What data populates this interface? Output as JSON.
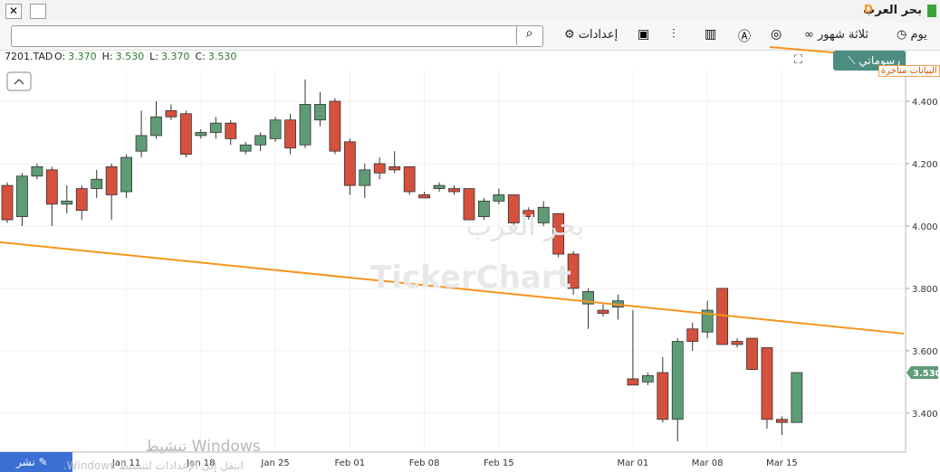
{
  "window": {
    "title": "بحر العرب",
    "badge": "D"
  },
  "toolbar": {
    "period": "يوم",
    "range": "ثلاثة شهور",
    "settings": "إعدادات"
  },
  "panel": {
    "drawings": "رسوماتي",
    "delayed": "البيانات متأخرة",
    "publish": "نشر"
  },
  "watermark": {
    "name": "بحر العرب",
    "brand": "TickerChart"
  },
  "system_overlay": {
    "line1": "تنشيط Windows",
    "line2": "انتقل إلى الإعدادات لتنشيط Windows."
  },
  "chart_data": {
    "type": "candlestick",
    "symbol": "7201.TAD",
    "info": [
      {
        "name": "O:",
        "value": {
          "value": 3.37,
          "label": "3.370"
        }
      },
      {
        "name": "H:",
        "value": {
          "value": 3.53,
          "label": "3.530"
        }
      },
      {
        "name": "L:",
        "value": {
          "value": 3.37,
          "label": "3.370"
        }
      },
      {
        "name": "C:",
        "value": {
          "value": 3.53,
          "label": "3.530"
        }
      }
    ],
    "last_price": {
      "value": 3.53,
      "label": "3.530"
    },
    "up_color": "#5e9c76",
    "down_color": "#d6503e",
    "x": [
      null,
      null,
      null,
      null,
      null,
      null,
      null,
      null,
      "Jan 11",
      null,
      null,
      null,
      null,
      "Jan 18",
      null,
      null,
      null,
      null,
      "Jan 25",
      null,
      null,
      null,
      null,
      "Feb 01",
      null,
      null,
      null,
      null,
      "Feb 08",
      null,
      null,
      null,
      null,
      "Feb 15",
      null,
      null,
      null,
      null,
      null,
      null,
      null,
      null,
      "Mar 01",
      null,
      null,
      null,
      null,
      "Mar 08",
      null,
      null,
      null,
      null,
      "Mar 15",
      null
    ],
    "open": [
      4.13,
      4.03,
      4.16,
      4.18,
      4.07,
      4.12,
      4.12,
      4.19,
      4.11,
      4.24,
      4.29,
      4.37,
      4.36,
      4.29,
      4.3,
      4.33,
      4.24,
      4.26,
      4.28,
      4.34,
      4.26,
      4.34,
      4.4,
      4.27,
      4.13,
      4.2,
      4.19,
      4.19,
      4.1,
      4.12,
      4.12,
      4.12,
      4.03,
      4.08,
      4.1,
      4.05,
      4.01,
      4.04,
      3.91,
      3.75,
      3.73,
      3.74,
      3.51,
      3.5,
      3.53,
      3.38,
      3.67,
      3.66,
      3.8,
      3.63,
      3.64,
      3.61,
      3.38,
      3.37
    ],
    "high": [
      4.14,
      4.17,
      4.2,
      4.19,
      4.13,
      4.13,
      4.18,
      4.2,
      4.23,
      4.37,
      4.4,
      4.39,
      4.37,
      4.31,
      4.35,
      4.34,
      4.27,
      4.3,
      4.35,
      4.36,
      4.47,
      4.43,
      4.41,
      4.28,
      4.2,
      4.22,
      4.24,
      4.19,
      4.11,
      4.14,
      4.13,
      4.12,
      4.09,
      4.12,
      4.1,
      4.06,
      4.08,
      4.04,
      3.92,
      3.8,
      3.75,
      3.78,
      3.73,
      3.53,
      3.58,
      3.64,
      3.69,
      3.76,
      3.8,
      3.64,
      3.64,
      3.61,
      3.39,
      3.53
    ],
    "low": [
      4.01,
      4.0,
      4.15,
      4.0,
      4.04,
      4.02,
      4.09,
      4.02,
      4.09,
      4.22,
      4.28,
      4.34,
      4.22,
      4.28,
      4.28,
      4.26,
      4.23,
      4.24,
      4.27,
      4.23,
      4.25,
      4.32,
      4.23,
      4.1,
      4.09,
      4.15,
      4.17,
      4.1,
      4.09,
      4.11,
      4.1,
      4.02,
      4.02,
      4.07,
      4.0,
      4.02,
      4.0,
      3.9,
      3.78,
      3.67,
      3.71,
      3.7,
      3.49,
      3.49,
      3.37,
      3.31,
      3.6,
      3.64,
      3.62,
      3.61,
      3.54,
      3.35,
      3.33,
      3.37
    ],
    "close": [
      4.02,
      4.16,
      4.19,
      4.07,
      4.08,
      4.05,
      4.15,
      4.1,
      4.22,
      4.29,
      4.35,
      4.35,
      4.23,
      4.3,
      4.33,
      4.28,
      4.26,
      4.29,
      4.34,
      4.25,
      4.39,
      4.39,
      4.24,
      4.13,
      4.18,
      4.17,
      4.18,
      4.11,
      4.09,
      4.13,
      4.11,
      4.02,
      4.08,
      4.1,
      4.01,
      4.03,
      4.06,
      3.91,
      3.8,
      3.79,
      3.72,
      3.76,
      3.49,
      3.52,
      3.38,
      3.63,
      3.63,
      3.73,
      3.62,
      3.62,
      3.54,
      3.38,
      3.37,
      3.53
    ],
    "trendlines": [
      {
        "color": "#f7941d",
        "values": [
          3.948,
          3.655
        ]
      }
    ],
    "ylim": [
      3.275,
      4.5
    ],
    "yticks": [
      {
        "value": 3.4,
        "label": "3.400"
      },
      {
        "value": 3.6,
        "label": "3.600"
      },
      {
        "value": 3.8,
        "label": "3.800"
      },
      {
        "value": 4.0,
        "label": "4.000"
      },
      {
        "value": 4.2,
        "label": "4.200"
      },
      {
        "value": 4.4,
        "label": "4.400"
      }
    ],
    "grid": true
  }
}
